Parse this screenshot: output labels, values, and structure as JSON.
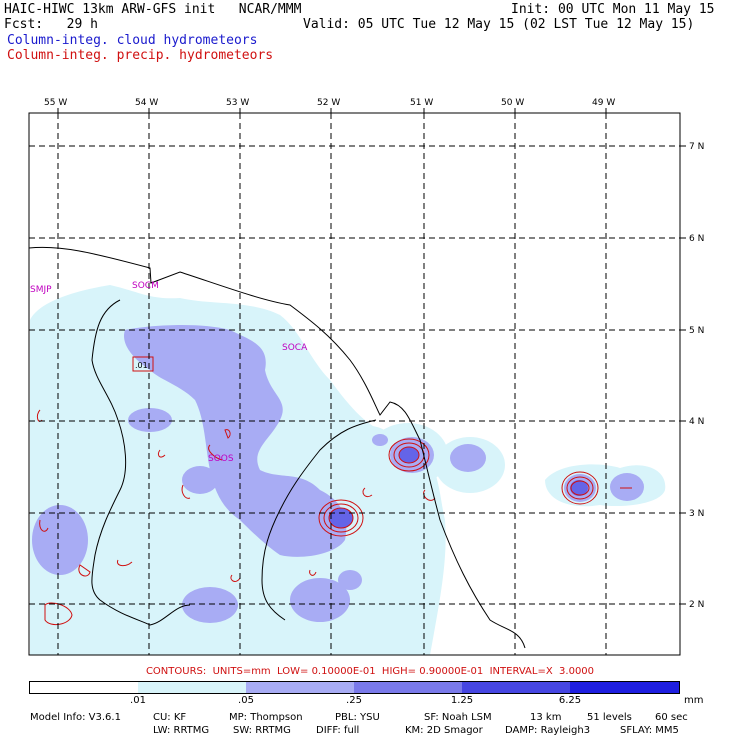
{
  "header": {
    "title_left": "HAIC-HIWC 13km ARW-GFS init   NCAR/MMM",
    "fcst": "Fcst:   29 h",
    "init": "Init: 00 UTC Mon 11 May 15",
    "valid": "Valid: 05 UTC Tue 12 May 15 (02 LST Tue 12 May 15)",
    "field1": "Column-integ. cloud hydrometeors",
    "field2": "Column-integ. precip. hydrometeors"
  },
  "map": {
    "lon_labels": [
      "55 W",
      "54 W",
      "53 W",
      "52 W",
      "51 W",
      "50 W",
      "49 W"
    ],
    "lat_labels": [
      "7 N",
      "6 N",
      "5 N",
      "4 N",
      "3 N",
      "2 N"
    ],
    "stations": [
      "SMJP",
      "SOCM",
      "SOCA",
      "SOOS"
    ],
    "contour_label": ".01",
    "colors": {
      "cloud_light": "#d8f4fa",
      "cloud_mid": "#a8acf4",
      "cloud_strong": "#6464e8",
      "precip_contour": "#d01010",
      "coast": "#000000",
      "grid": "#000000"
    }
  },
  "contours": "CONTOURS:  UNITS=mm  LOW= 0.10000E-01  HIGH= 0.90000E-01  INTERVAL=X  3.0000",
  "legend": {
    "ticks": [
      ".01",
      ".05",
      ".25",
      "1.25",
      "6.25"
    ],
    "unit": "mm",
    "colors": [
      "#ffffff",
      "#d8f4fa",
      "#a8acf4",
      "#7a7aea",
      "#4646e2",
      "#1e1ee0"
    ]
  },
  "model_info": {
    "line1": [
      "Model Info: V3.6.1",
      "CU: KF",
      "MP: Thompson",
      "PBL: YSU",
      "SF: Noah LSM",
      "13 km",
      "51 levels",
      "60 sec"
    ],
    "line2": [
      "LW: RRTMG",
      "SW: RRTMG",
      "DIFF: full",
      "KM: 2D Smagor",
      "DAMP: Rayleigh3",
      "SFLAY: MM5"
    ]
  }
}
